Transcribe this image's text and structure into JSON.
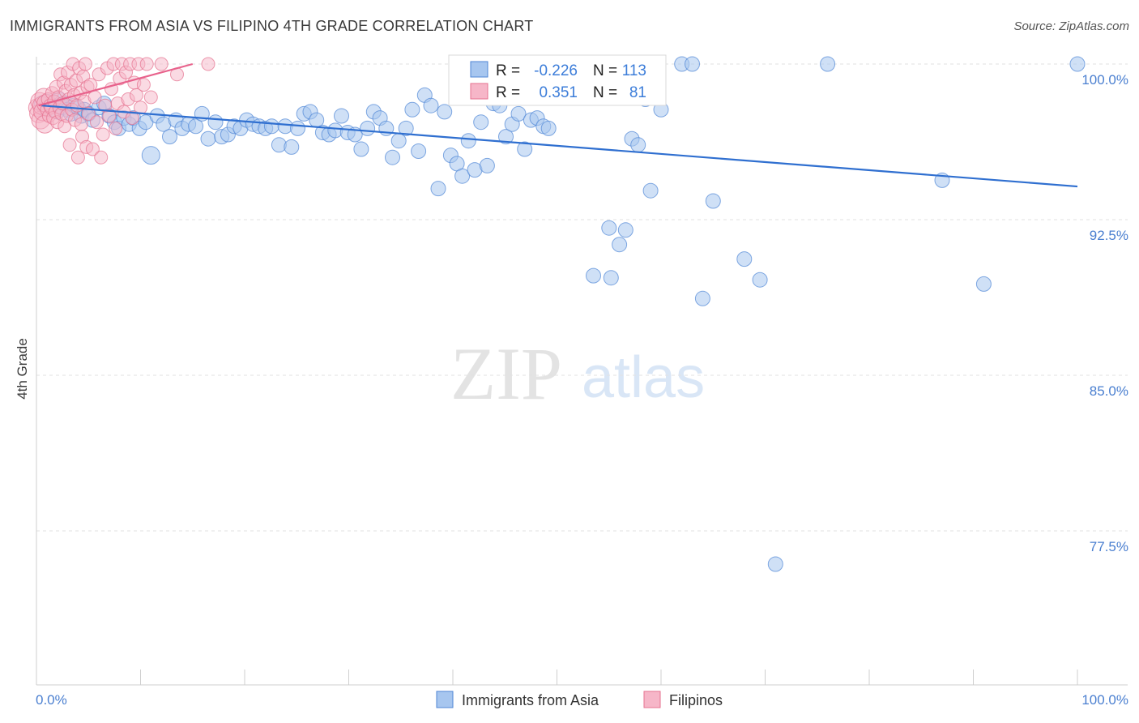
{
  "title": "IMMIGRANTS FROM ASIA VS FILIPINO 4TH GRADE CORRELATION CHART",
  "source": "Source: ZipAtlas.com",
  "watermark": {
    "zip": "ZIP",
    "atlas": "atlas"
  },
  "stats_box": {
    "rows": [
      {
        "r_label": "R =",
        "r_value": "-0.226",
        "n_label": "N =",
        "n_value": "113",
        "color": "#a7c6ef"
      },
      {
        "r_label": "R =",
        "r_value": "0.351",
        "n_label": "N =",
        "n_value": "81",
        "color": "#f6b6c8"
      }
    ]
  },
  "chart_data": {
    "type": "scatter",
    "title": "IMMIGRANTS FROM ASIA VS FILIPINO 4TH GRADE CORRELATION CHART",
    "xlabel": "",
    "ylabel": "4th Grade",
    "xlim": [
      0,
      100
    ],
    "ylim": [
      70.0,
      100.5
    ],
    "x_tick_labels": [
      "0.0%",
      "100.0%"
    ],
    "y_ticks": [
      77.5,
      85.0,
      92.5,
      100.0
    ],
    "y_tick_labels": [
      "77.5%",
      "85.0%",
      "92.5%",
      "100.0%"
    ],
    "grid": true,
    "legend_position": "bottom-center",
    "series": [
      {
        "name": "Immigrants from Asia",
        "color": "#a7c6ef",
        "edge_color": "#4f86d6",
        "line_color": "#2f6fd0",
        "trend": {
          "x0": 0.5,
          "y0": 98.0,
          "x1": 100,
          "y1": 94.1
        },
        "points": [
          [
            0.5,
            98.1
          ],
          [
            0.8,
            97.8
          ],
          [
            1.0,
            98.2
          ],
          [
            1.2,
            97.9
          ],
          [
            1.5,
            98.0
          ],
          [
            1.8,
            98.1
          ],
          [
            2.0,
            97.7
          ],
          [
            2.2,
            98.3
          ],
          [
            2.5,
            97.9
          ],
          [
            2.8,
            98.1
          ],
          [
            3.0,
            97.8
          ],
          [
            3.3,
            97.6
          ],
          [
            3.6,
            98.0
          ],
          [
            4.0,
            97.9
          ],
          [
            4.3,
            97.5
          ],
          [
            4.6,
            97.8
          ],
          [
            5.0,
            97.6
          ],
          [
            5.4,
            97.3
          ],
          [
            6.0,
            97.9
          ],
          [
            6.5,
            98.1
          ],
          [
            7.0,
            97.5
          ],
          [
            7.5,
            97.2
          ],
          [
            7.9,
            96.9
          ],
          [
            8.4,
            97.4
          ],
          [
            8.9,
            97.1
          ],
          [
            9.3,
            97.4
          ],
          [
            9.9,
            96.9
          ],
          [
            10.5,
            97.2
          ],
          [
            11.0,
            95.6
          ],
          [
            11.6,
            97.5
          ],
          [
            12.2,
            97.1
          ],
          [
            12.8,
            96.5
          ],
          [
            13.4,
            97.3
          ],
          [
            14.0,
            96.9
          ],
          [
            14.6,
            97.1
          ],
          [
            15.3,
            97.0
          ],
          [
            15.9,
            97.6
          ],
          [
            16.5,
            96.4
          ],
          [
            17.2,
            97.2
          ],
          [
            17.8,
            96.5
          ],
          [
            18.4,
            96.6
          ],
          [
            19.0,
            97.0
          ],
          [
            19.6,
            96.9
          ],
          [
            20.2,
            97.3
          ],
          [
            20.8,
            97.1
          ],
          [
            21.4,
            97.0
          ],
          [
            22.0,
            96.9
          ],
          [
            22.6,
            97.0
          ],
          [
            23.3,
            96.1
          ],
          [
            23.9,
            97.0
          ],
          [
            24.5,
            96.0
          ],
          [
            25.1,
            96.9
          ],
          [
            25.7,
            97.6
          ],
          [
            26.3,
            97.7
          ],
          [
            26.9,
            97.3
          ],
          [
            27.5,
            96.7
          ],
          [
            28.1,
            96.6
          ],
          [
            28.7,
            96.8
          ],
          [
            29.3,
            97.5
          ],
          [
            29.9,
            96.7
          ],
          [
            30.6,
            96.6
          ],
          [
            31.2,
            95.9
          ],
          [
            31.8,
            96.9
          ],
          [
            32.4,
            97.7
          ],
          [
            33.0,
            97.4
          ],
          [
            33.6,
            96.9
          ],
          [
            34.2,
            95.5
          ],
          [
            34.8,
            96.3
          ],
          [
            35.5,
            96.9
          ],
          [
            36.1,
            97.8
          ],
          [
            36.7,
            95.8
          ],
          [
            37.3,
            98.5
          ],
          [
            37.9,
            98.0
          ],
          [
            38.6,
            94.0
          ],
          [
            39.2,
            97.7
          ],
          [
            39.8,
            95.6
          ],
          [
            40.4,
            95.2
          ],
          [
            40.9,
            94.6
          ],
          [
            41.5,
            96.3
          ],
          [
            42.1,
            94.9
          ],
          [
            42.7,
            97.2
          ],
          [
            43.3,
            95.1
          ],
          [
            43.9,
            98.1
          ],
          [
            44.5,
            98.0
          ],
          [
            45.1,
            96.5
          ],
          [
            45.7,
            97.1
          ],
          [
            46.3,
            97.6
          ],
          [
            46.9,
            95.9
          ],
          [
            47.5,
            97.3
          ],
          [
            48.1,
            97.4
          ],
          [
            48.7,
            97.0
          ],
          [
            49.2,
            96.9
          ],
          [
            53.5,
            89.8
          ],
          [
            55.0,
            92.1
          ],
          [
            55.2,
            89.7
          ],
          [
            56.0,
            91.3
          ],
          [
            56.6,
            92.0
          ],
          [
            57.2,
            96.4
          ],
          [
            57.8,
            96.1
          ],
          [
            58.5,
            98.3
          ],
          [
            59.0,
            93.9
          ],
          [
            60.0,
            97.8
          ],
          [
            62.0,
            100.0
          ],
          [
            63.0,
            100.0
          ],
          [
            64.0,
            88.7
          ],
          [
            65.0,
            93.4
          ],
          [
            68.0,
            90.6
          ],
          [
            69.5,
            89.6
          ],
          [
            71.0,
            75.9
          ],
          [
            76.0,
            100.0
          ],
          [
            87.0,
            94.4
          ],
          [
            91.0,
            89.4
          ],
          [
            100.0,
            100.0
          ]
        ]
      },
      {
        "name": "Filipinos",
        "color": "#f6b6c8",
        "edge_color": "#e6718f",
        "line_color": "#e8628c",
        "trend": {
          "x0": 0.2,
          "y0": 98.0,
          "x1": 15.0,
          "y1": 100.0
        },
        "points": [
          [
            0.1,
            97.9
          ],
          [
            0.2,
            97.6
          ],
          [
            0.3,
            98.2
          ],
          [
            0.4,
            97.3
          ],
          [
            0.5,
            98.0
          ],
          [
            0.6,
            97.7
          ],
          [
            0.7,
            98.4
          ],
          [
            0.8,
            97.1
          ],
          [
            0.9,
            98.1
          ],
          [
            1.0,
            97.8
          ],
          [
            1.1,
            98.3
          ],
          [
            1.2,
            97.5
          ],
          [
            1.3,
            98.0
          ],
          [
            1.4,
            97.9
          ],
          [
            1.5,
            98.6
          ],
          [
            1.6,
            97.4
          ],
          [
            1.7,
            98.2
          ],
          [
            1.8,
            97.7
          ],
          [
            1.9,
            98.9
          ],
          [
            2.0,
            97.2
          ],
          [
            2.1,
            98.4
          ],
          [
            2.2,
            97.9
          ],
          [
            2.3,
            99.5
          ],
          [
            2.4,
            97.6
          ],
          [
            2.5,
            98.1
          ],
          [
            2.6,
            99.1
          ],
          [
            2.7,
            97.0
          ],
          [
            2.8,
            98.7
          ],
          [
            2.9,
            97.5
          ],
          [
            3.0,
            99.6
          ],
          [
            3.1,
            98.3
          ],
          [
            3.2,
            96.1
          ],
          [
            3.3,
            99.0
          ],
          [
            3.4,
            97.8
          ],
          [
            3.5,
            100.0
          ],
          [
            3.6,
            98.5
          ],
          [
            3.7,
            97.3
          ],
          [
            3.8,
            99.2
          ],
          [
            3.9,
            98.0
          ],
          [
            4.0,
            95.5
          ],
          [
            4.1,
            99.8
          ],
          [
            4.2,
            98.6
          ],
          [
            4.3,
            97.1
          ],
          [
            4.4,
            96.5
          ],
          [
            4.5,
            99.4
          ],
          [
            4.6,
            98.2
          ],
          [
            4.7,
            100.0
          ],
          [
            4.8,
            96.0
          ],
          [
            4.9,
            98.9
          ],
          [
            5.0,
            97.6
          ],
          [
            5.2,
            99.0
          ],
          [
            5.4,
            95.9
          ],
          [
            5.6,
            98.4
          ],
          [
            5.8,
            97.2
          ],
          [
            6.0,
            99.5
          ],
          [
            6.2,
            95.5
          ],
          [
            6.4,
            96.6
          ],
          [
            6.6,
            98.0
          ],
          [
            6.8,
            99.8
          ],
          [
            7.0,
            97.5
          ],
          [
            7.2,
            98.8
          ],
          [
            7.4,
            100.0
          ],
          [
            7.6,
            96.9
          ],
          [
            7.8,
            98.1
          ],
          [
            8.0,
            99.3
          ],
          [
            8.2,
            100.0
          ],
          [
            8.4,
            97.7
          ],
          [
            8.6,
            99.6
          ],
          [
            8.8,
            98.3
          ],
          [
            9.0,
            100.0
          ],
          [
            9.2,
            97.4
          ],
          [
            9.4,
            99.1
          ],
          [
            9.6,
            98.5
          ],
          [
            9.8,
            100.0
          ],
          [
            10.0,
            97.9
          ],
          [
            10.3,
            99.0
          ],
          [
            10.6,
            100.0
          ],
          [
            11.0,
            98.4
          ],
          [
            12.0,
            100.0
          ],
          [
            13.5,
            99.5
          ],
          [
            16.5,
            100.0
          ]
        ]
      }
    ]
  },
  "legend": {
    "items": [
      {
        "label": "Immigrants from Asia",
        "color": "#a7c6ef"
      },
      {
        "label": "Filipinos",
        "color": "#f6b6c8"
      }
    ]
  }
}
